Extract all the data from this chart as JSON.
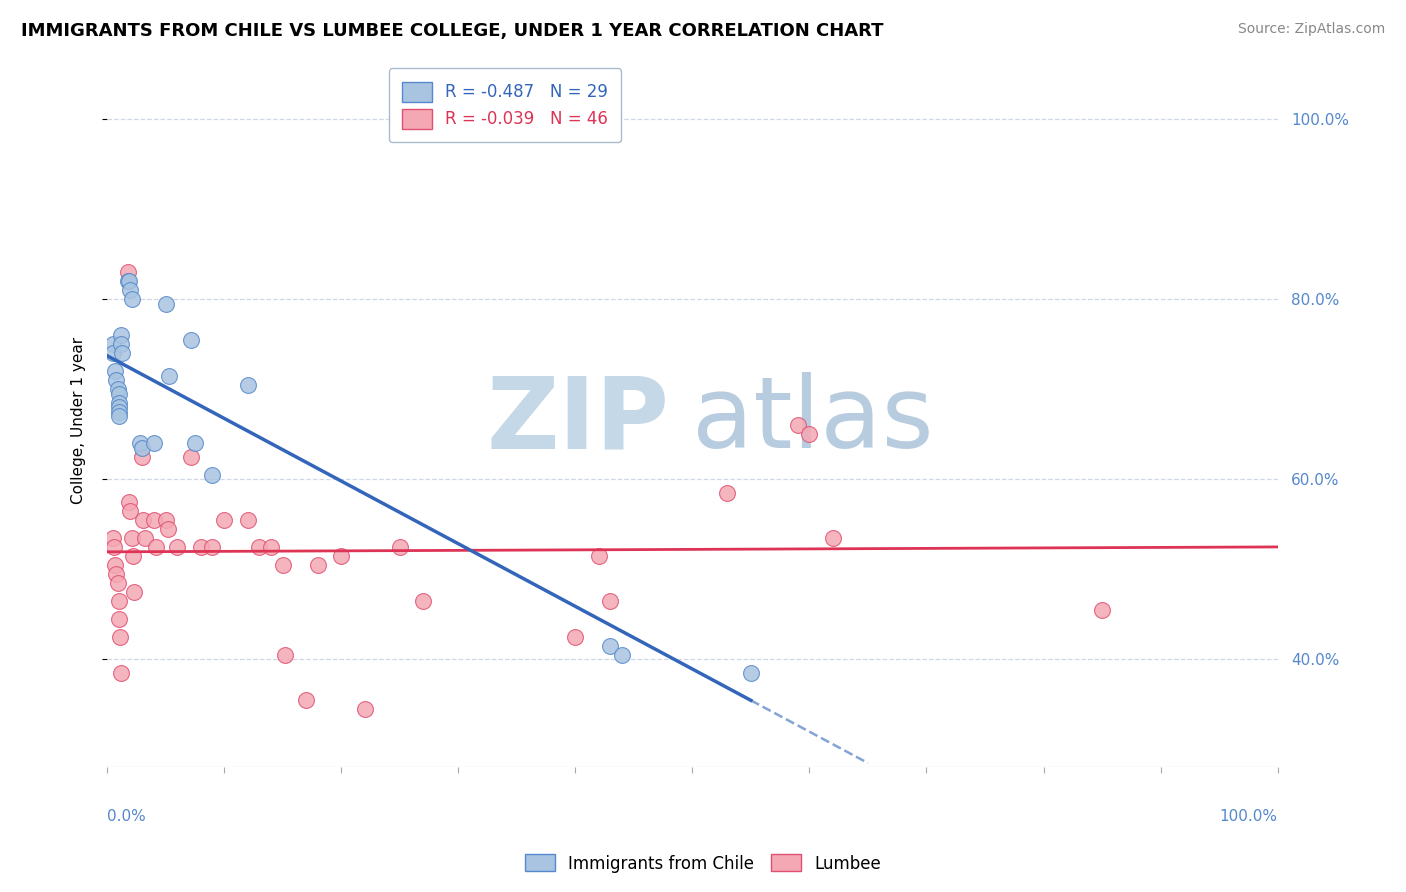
{
  "title": "IMMIGRANTS FROM CHILE VS LUMBEE COLLEGE, UNDER 1 YEAR CORRELATION CHART",
  "source_text": "Source: ZipAtlas.com",
  "ylabel": "College, Under 1 year",
  "blue_R": -0.487,
  "blue_N": 29,
  "pink_R": -0.039,
  "pink_N": 46,
  "blue_color": "#A8C4E0",
  "pink_color": "#F4A8B4",
  "blue_edge_color": "#5588CC",
  "pink_edge_color": "#E05070",
  "blue_line_color": "#3366BB",
  "pink_line_color": "#DD3355",
  "watermark_zip_color": "#C5D8E8",
  "watermark_atlas_color": "#B8CCE0",
  "background_color": "#FFFFFF",
  "grid_color": "#D0D8E8",
  "xlim": [
    0.0,
    1.0
  ],
  "ylim": [
    0.28,
    1.05
  ],
  "yticks": [
    0.4,
    0.6,
    0.8,
    1.0
  ],
  "ytick_labels": [
    "40.0%",
    "60.0%",
    "80.0%",
    "100.0%"
  ],
  "xticks": [
    0.0,
    0.1,
    0.2,
    0.3,
    0.4,
    0.5,
    0.6,
    0.7,
    0.8,
    0.9,
    1.0
  ],
  "blue_scatter_x": [
    0.005,
    0.005,
    0.007,
    0.008,
    0.009,
    0.01,
    0.01,
    0.01,
    0.01,
    0.01,
    0.012,
    0.012,
    0.013,
    0.018,
    0.019,
    0.02,
    0.021,
    0.028,
    0.03,
    0.04,
    0.05,
    0.053,
    0.072,
    0.075,
    0.09,
    0.12,
    0.43,
    0.44,
    0.55
  ],
  "blue_scatter_y": [
    0.75,
    0.74,
    0.72,
    0.71,
    0.7,
    0.695,
    0.685,
    0.68,
    0.675,
    0.67,
    0.76,
    0.75,
    0.74,
    0.82,
    0.82,
    0.81,
    0.8,
    0.64,
    0.635,
    0.64,
    0.795,
    0.715,
    0.755,
    0.64,
    0.605,
    0.705,
    0.415,
    0.405,
    0.385
  ],
  "pink_scatter_x": [
    0.005,
    0.006,
    0.007,
    0.008,
    0.009,
    0.01,
    0.01,
    0.011,
    0.012,
    0.018,
    0.019,
    0.02,
    0.021,
    0.022,
    0.023,
    0.03,
    0.031,
    0.032,
    0.04,
    0.042,
    0.05,
    0.052,
    0.06,
    0.072,
    0.08,
    0.09,
    0.1,
    0.12,
    0.13,
    0.14,
    0.15,
    0.152,
    0.17,
    0.18,
    0.2,
    0.22,
    0.25,
    0.27,
    0.4,
    0.42,
    0.43,
    0.53,
    0.59,
    0.6,
    0.62,
    0.85
  ],
  "pink_scatter_y": [
    0.535,
    0.525,
    0.505,
    0.495,
    0.485,
    0.465,
    0.445,
    0.425,
    0.385,
    0.83,
    0.575,
    0.565,
    0.535,
    0.515,
    0.475,
    0.625,
    0.555,
    0.535,
    0.555,
    0.525,
    0.555,
    0.545,
    0.525,
    0.625,
    0.525,
    0.525,
    0.555,
    0.555,
    0.525,
    0.525,
    0.505,
    0.405,
    0.355,
    0.505,
    0.515,
    0.345,
    0.525,
    0.465,
    0.425,
    0.515,
    0.465,
    0.585,
    0.66,
    0.65,
    0.535,
    0.455
  ],
  "title_fontsize": 13,
  "source_fontsize": 10,
  "axis_label_fontsize": 11,
  "tick_fontsize": 11,
  "legend_fontsize": 12,
  "marker_size": 130
}
